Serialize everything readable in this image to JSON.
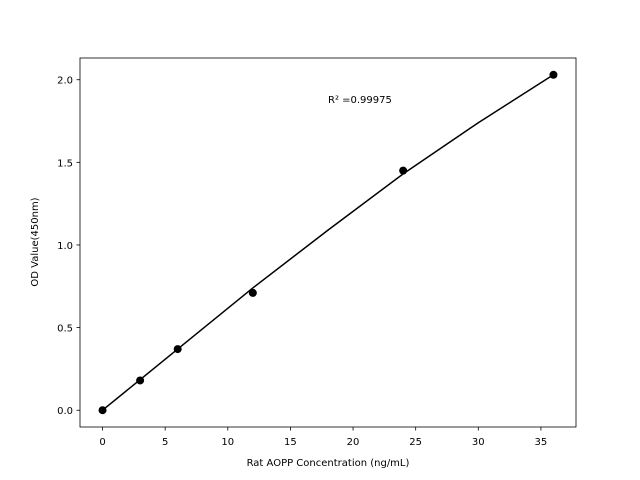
{
  "chart_data": {
    "type": "scatter",
    "x_label": "Rat AOPP Concentration (ng/mL)",
    "y_label": "OD Value(450nm)",
    "series": [
      {
        "name": "data",
        "color": "#000000",
        "x": [
          0,
          3,
          6,
          12,
          24,
          36
        ],
        "values": [
          0,
          0.18,
          0.37,
          0.71,
          1.45,
          2.03
        ]
      },
      {
        "name": "fit",
        "color": "#000000",
        "x": [
          0,
          6,
          12,
          18,
          24,
          30,
          36
        ],
        "values": [
          0,
          0.37,
          0.74,
          1.09,
          1.43,
          1.74,
          2.03
        ]
      }
    ],
    "annotation": {
      "text": "R² =0.99975",
      "x": 18,
      "y": 1.86
    },
    "xlim": [
      -1.8,
      37.8
    ],
    "ylim": [
      -0.1015,
      2.1315
    ],
    "xticks": [
      0,
      5,
      10,
      15,
      20,
      25,
      30,
      35
    ],
    "yticks": [
      {
        "value": 0,
        "label": "0.0"
      },
      0.5,
      {
        "value": 1,
        "label": "1.0"
      },
      1.5,
      {
        "value": 2,
        "label": "2.0"
      }
    ]
  }
}
